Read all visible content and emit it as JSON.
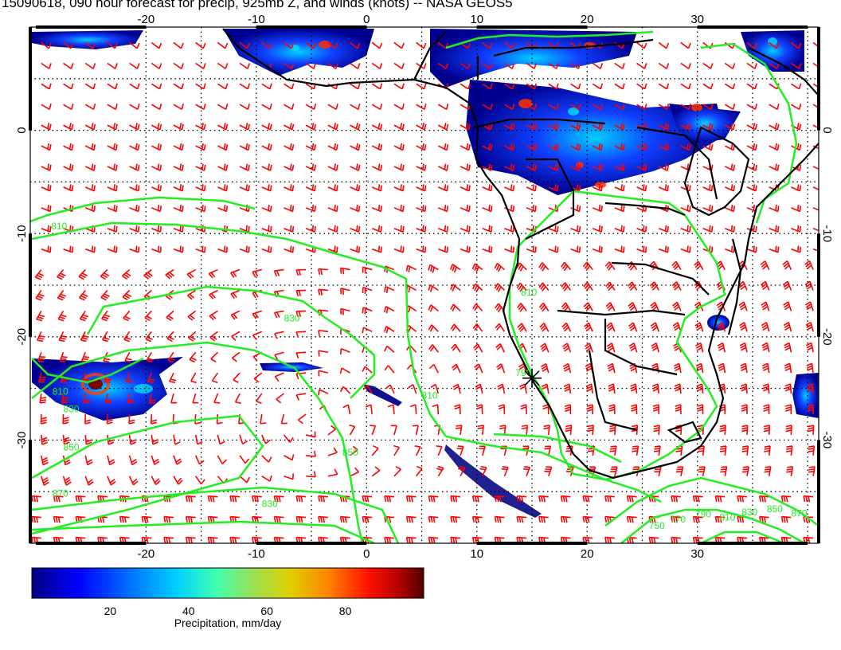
{
  "title": "15090618, 090 hour forecast for precip, 925mb Z, and winds (knots) -- NASA GEOS5",
  "map": {
    "lon_min": -30.5,
    "lon_max": 41,
    "lat_min": -40,
    "lat_max": 10,
    "lon_ticks": [
      "-20",
      "-10",
      "0",
      "10",
      "20",
      "30"
    ],
    "lon_tick_values": [
      -20,
      -10,
      0,
      10,
      20,
      30
    ],
    "lat_ticks": [
      "0",
      "-10",
      "-20",
      "-30"
    ],
    "lat_tick_values": [
      0,
      -10,
      -20,
      -30
    ],
    "grid": "dotted",
    "barb_color": "#ff0000",
    "contour_color": "#22ee22",
    "coast_color": "#000000",
    "contour_labels": [
      "810",
      "830",
      "850",
      "870",
      "790",
      "810",
      "830",
      "850",
      "810",
      "830",
      "810",
      "750",
      "770",
      "790",
      "810",
      "830",
      "850",
      "870"
    ],
    "contour_label_values": [
      {
        "text": "810",
        "lon": -28.6,
        "lat": -9.6
      },
      {
        "text": "830",
        "lon": -7.5,
        "lat": -18.5
      },
      {
        "text": "850",
        "lon": -2.2,
        "lat": -31.5
      },
      {
        "text": "870",
        "lon": -28.5,
        "lat": -35.5
      },
      {
        "text": "790",
        "lon": 13.5,
        "lat": -23.8
      },
      {
        "text": "810",
        "lon": 5.0,
        "lat": -26.0
      },
      {
        "text": "830",
        "lon": -27.5,
        "lat": -27.3
      },
      {
        "text": "850",
        "lon": -27.5,
        "lat": -31.0
      },
      {
        "text": "810",
        "lon": -28.5,
        "lat": -25.6
      },
      {
        "text": "830",
        "lon": -9.5,
        "lat": -36.5
      },
      {
        "text": "810",
        "lon": 14.0,
        "lat": -16.0
      },
      {
        "text": "750",
        "lon": 25.6,
        "lat": -38.6
      },
      {
        "text": "770",
        "lon": 27.5,
        "lat": -38.0
      },
      {
        "text": "790",
        "lon": 29.8,
        "lat": -37.5
      },
      {
        "text": "810",
        "lon": 32.0,
        "lat": -37.8
      },
      {
        "text": "830",
        "lon": 34.0,
        "lat": -37.3
      },
      {
        "text": "850",
        "lon": 36.3,
        "lat": -37.0
      },
      {
        "text": "870",
        "lon": 38.5,
        "lat": -37.4
      }
    ],
    "marker_icon": "asterisk-marker-icon",
    "marker": {
      "lon": 15.0,
      "lat": -24.0
    }
  },
  "colorbar": {
    "label": "Precipitation, mm/day",
    "ticks": [
      "20",
      "40",
      "60",
      "80"
    ],
    "tick_values": [
      20,
      40,
      60,
      80
    ],
    "range": [
      0,
      100
    ],
    "colors": [
      "#000090",
      "#0000ff",
      "#0060ff",
      "#00c8ff",
      "#40ffc0",
      "#a0e060",
      "#e0e000",
      "#ff9000",
      "#ff2000",
      "#c00000",
      "#600000"
    ]
  }
}
